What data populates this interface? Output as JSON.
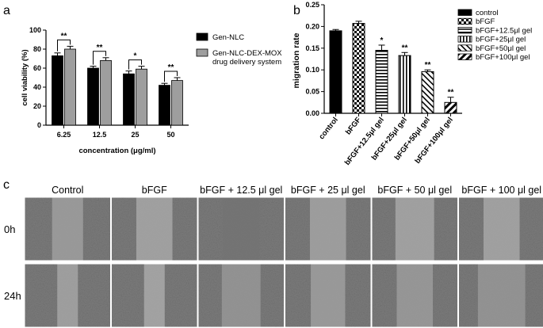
{
  "chart_data": [
    {
      "panel": "a",
      "type": "bar",
      "xlabel": "concentration (μg/ml)",
      "ylabel": "cell viability (%)",
      "ylim": [
        0,
        100
      ],
      "yticks": [
        0,
        20,
        40,
        60,
        80,
        100
      ],
      "categories": [
        "6.25",
        "12.5",
        "25",
        "50"
      ],
      "series": [
        {
          "name": "Gen-NLC",
          "color": "#000000",
          "values": [
            73,
            60,
            54,
            42
          ],
          "errors": [
            3,
            2,
            3,
            2
          ]
        },
        {
          "name": "Gen-NLC-DEX-MOX drug delivery system",
          "color": "#9e9e9e",
          "values": [
            80,
            68,
            59,
            47
          ],
          "errors": [
            3,
            3,
            3,
            3
          ]
        }
      ],
      "significance": [
        "**",
        "**",
        "*",
        "**"
      ],
      "legend_position": "right"
    },
    {
      "panel": "b",
      "type": "bar",
      "xlabel": "",
      "ylabel": "migration rate",
      "ylim": [
        0,
        0.25
      ],
      "yticks": [
        "0.00",
        "0.05",
        "0.10",
        "0.15",
        "0.20",
        "0.25"
      ],
      "categories": [
        "control",
        "bFGF",
        "bFGF+12.5μl gel",
        "bFGF+25μl gel",
        "bFGF+50μl gel",
        "bFGF+100μl gel"
      ],
      "values": [
        0.19,
        0.207,
        0.145,
        0.133,
        0.096,
        0.025
      ],
      "errors": [
        0.003,
        0.005,
        0.012,
        0.007,
        0.004,
        0.012
      ],
      "patterns": [
        "solid",
        "checker",
        "hstripe",
        "vstripe",
        "diag",
        "diagthick"
      ],
      "significance": [
        "",
        "",
        "*",
        "**",
        "**",
        "**"
      ],
      "legend": [
        "control",
        "bFGF",
        "bFGF+12.5μl gel",
        "bFGF+25μl gel",
        "bFGF+50μl gel",
        "bFGF+100μl gel"
      ],
      "legend_position": "top-right"
    }
  ],
  "panel_labels": {
    "a": "a",
    "b": "b",
    "c": "c"
  },
  "panel_c": {
    "columns": [
      "Control",
      "bFGF",
      "bFGF + 12.5 μl gel",
      "bFGF + 25 μl gel",
      "bFGF + 50 μl gel",
      "bFGF + 100 μl gel"
    ],
    "rows": [
      "0h",
      "24h"
    ]
  }
}
